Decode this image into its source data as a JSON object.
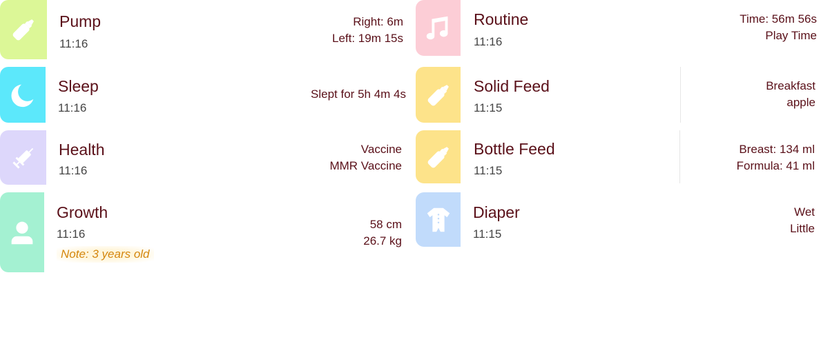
{
  "entries": [
    {
      "title": "Pump",
      "time": "11:16",
      "details": [
        "Right: 6m",
        "Left: 19m 15s"
      ],
      "icon": "bottle-icon",
      "color": "#dcf797"
    },
    {
      "title": "Sleep",
      "time": "11:16",
      "details": [
        "Slept for 5h 4m 4s"
      ],
      "icon": "moon-icon",
      "color": "#5ce8fb"
    },
    {
      "title": "Health",
      "time": "11:16",
      "details": [
        "Vaccine",
        "MMR Vaccine"
      ],
      "icon": "syringe-icon",
      "color": "#ddd7fb"
    },
    {
      "title": "Growth",
      "time": "11:16",
      "details": [
        "58 cm",
        "26.7 kg"
      ],
      "note": "Note: 3 years old",
      "icon": "person-icon",
      "color": "#a4f1d2"
    },
    {
      "title": "Routine",
      "time": "11:16",
      "details": [
        "Time: 56m 56s",
        "Play Time"
      ],
      "icon": "music-note-icon",
      "color": "#fccdd6"
    },
    {
      "title": "Solid Feed",
      "time": "11:15",
      "details": [
        "Breakfast",
        "apple"
      ],
      "icon": "bottle-icon",
      "color": "#fde38a"
    },
    {
      "title": "Bottle Feed",
      "time": "11:15",
      "details": [
        "Breast: 134 ml",
        "Formula: 41 ml"
      ],
      "icon": "bottle-icon",
      "color": "#fde38a"
    },
    {
      "title": "Diaper",
      "time": "11:15",
      "details": [
        "Wet",
        "Little"
      ],
      "icon": "onesie-icon",
      "color": "#c1dbfb"
    }
  ]
}
